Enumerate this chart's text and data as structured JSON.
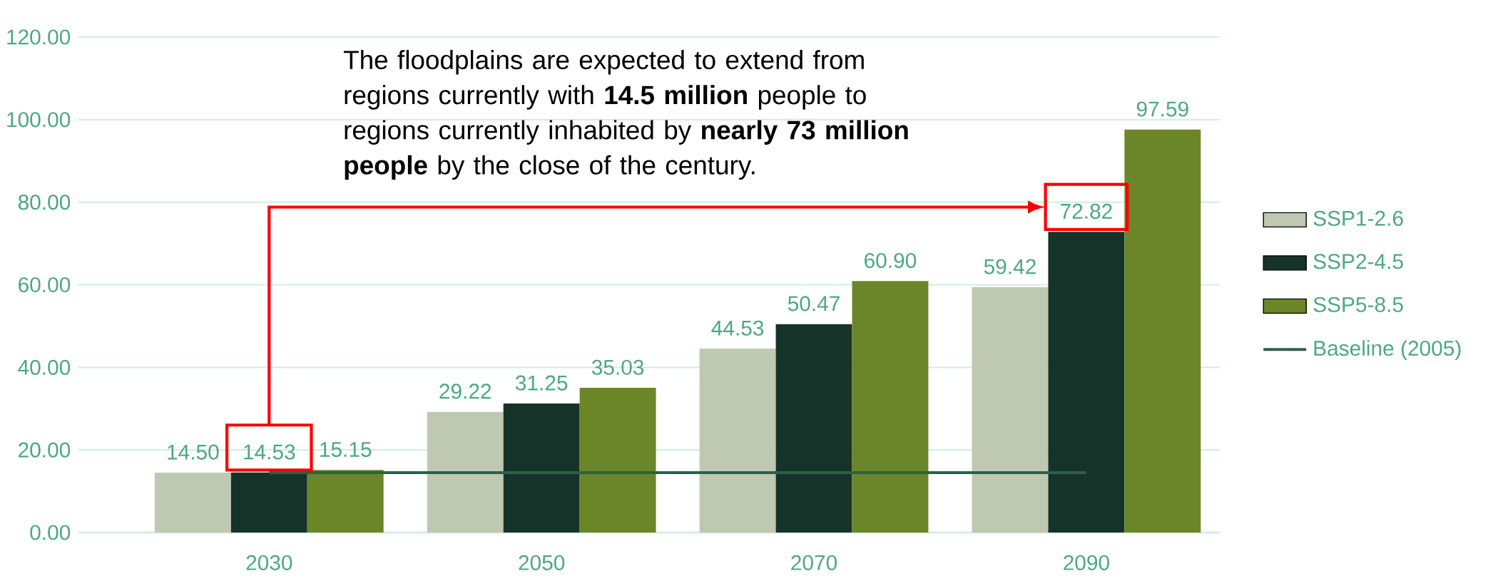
{
  "chart_data": {
    "type": "bar",
    "categories": [
      "2030",
      "2050",
      "2070",
      "2090"
    ],
    "series": [
      {
        "name": "SSP1-2.6",
        "color": "#bfc8b1",
        "values": [
          14.5,
          29.22,
          44.53,
          59.42
        ],
        "value_labels": [
          "14.50",
          "29.22",
          "44.53",
          "59.42"
        ]
      },
      {
        "name": "SSP2-4.5",
        "color": "#16332a",
        "values": [
          14.53,
          31.25,
          50.47,
          72.82
        ],
        "value_labels": [
          "14.53",
          "31.25",
          "50.47",
          "72.82"
        ]
      },
      {
        "name": "SSP5-8.5",
        "color": "#6b8629",
        "values": [
          15.15,
          35.03,
          60.9,
          97.59
        ],
        "value_labels": [
          "15.15",
          "35.03",
          "60.90",
          "97.59"
        ]
      },
      {
        "name": "Baseline (2005)",
        "type": "line",
        "color": "#2f5e4a",
        "values": [
          14.5,
          14.5,
          14.5,
          14.5
        ]
      }
    ],
    "ylim": [
      0,
      120
    ],
    "yticks": [
      {
        "value": 0,
        "label": "0.00"
      },
      {
        "value": 20,
        "label": "20.00"
      },
      {
        "value": 40,
        "label": "40.00"
      },
      {
        "value": 60,
        "label": "60.00"
      },
      {
        "value": 80,
        "label": "80.00"
      },
      {
        "value": 100,
        "label": "100.00"
      },
      {
        "value": 120,
        "label": "120.00"
      }
    ],
    "grid": "y",
    "legend": "right",
    "annotations": [
      "The floodplains are expected to extend from regions currently with **14.5 million** people to regions currently inhabited by **nearly 73 million people** by the close of the century."
    ]
  }
}
